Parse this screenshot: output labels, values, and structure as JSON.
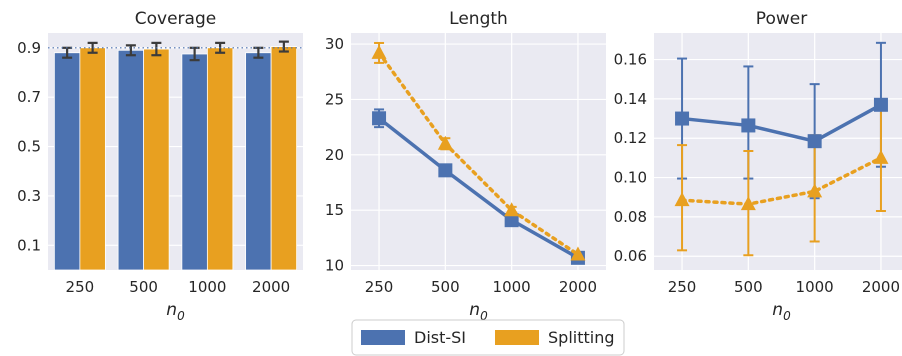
{
  "colors": {
    "dist_si": "#4c72b0",
    "splitting": "#e8a020",
    "panel_bg": "#eaeaf2",
    "grid": "#ffffff",
    "reference_line": "#4c72b0",
    "errorbar_bar_chart": "#3b3b3b"
  },
  "legend": {
    "items": [
      {
        "label": "Dist-SI",
        "color": "#4c72b0"
      },
      {
        "label": "Splitting",
        "color": "#e8a020"
      }
    ],
    "placement": "bottom-center"
  },
  "chart_data": [
    {
      "type": "bar",
      "title": "Coverage",
      "xlabel_main": "n",
      "xlabel_sub": "0",
      "ylabel": "",
      "categories": [
        "250",
        "500",
        "1000",
        "2000"
      ],
      "ylim": [
        0,
        0.96
      ],
      "yticks": [
        0.1,
        0.3,
        0.5,
        0.7,
        0.9
      ],
      "ytick_labels": [
        "0.1",
        "0.3",
        "0.5",
        "0.7",
        "0.9"
      ],
      "reference_line": 0.9,
      "grid": true,
      "series": [
        {
          "name": "Dist-SI",
          "values": [
            0.88,
            0.89,
            0.875,
            0.88
          ],
          "err": [
            0.02,
            0.02,
            0.025,
            0.02
          ]
        },
        {
          "name": "Splitting",
          "values": [
            0.9,
            0.895,
            0.9,
            0.905
          ],
          "err": [
            0.02,
            0.025,
            0.02,
            0.02
          ]
        }
      ]
    },
    {
      "type": "line",
      "title": "Length",
      "xlabel_main": "n",
      "xlabel_sub": "0",
      "ylabel": "",
      "categories": [
        "250",
        "500",
        "1000",
        "2000"
      ],
      "ylim": [
        9.6,
        31
      ],
      "yticks": [
        10,
        15,
        20,
        25,
        30
      ],
      "ytick_labels": [
        "10",
        "15",
        "20",
        "25",
        "30"
      ],
      "grid": true,
      "series": [
        {
          "name": "Dist-SI",
          "values": [
            23.3,
            18.6,
            14.1,
            10.7
          ],
          "err": [
            0.8,
            0.4,
            0.2,
            0.2
          ],
          "marker": "square",
          "linestyle": "solid"
        },
        {
          "name": "Splitting",
          "values": [
            29.2,
            21.0,
            15.0,
            11.0
          ],
          "err": [
            0.9,
            0.5,
            0.3,
            0.2
          ],
          "marker": "triangle",
          "linestyle": "dotted"
        }
      ]
    },
    {
      "type": "line",
      "title": "Power",
      "xlabel_main": "n",
      "xlabel_sub": "0",
      "ylabel": "",
      "categories": [
        "250",
        "500",
        "1000",
        "2000"
      ],
      "ylim": [
        0.053,
        0.1735
      ],
      "yticks": [
        0.06,
        0.08,
        0.1,
        0.12,
        0.14,
        0.16
      ],
      "ytick_labels": [
        "0.06",
        "0.08",
        "0.10",
        "0.12",
        "0.14",
        "0.16"
      ],
      "grid": true,
      "series": [
        {
          "name": "Dist-SI",
          "values": [
            0.13,
            0.1265,
            0.1185,
            0.137
          ],
          "lower": [
            0.0995,
            0.0995,
            0.0895,
            0.1055
          ],
          "upper": [
            0.1605,
            0.1565,
            0.1475,
            0.1685
          ],
          "marker": "square",
          "linestyle": "solid"
        },
        {
          "name": "Splitting",
          "values": [
            0.0885,
            0.0865,
            0.093,
            0.11
          ],
          "lower": [
            0.063,
            0.0605,
            0.0675,
            0.083
          ],
          "upper": [
            0.1165,
            0.1135,
            0.1215,
            0.1385
          ],
          "marker": "triangle",
          "linestyle": "dotted"
        }
      ]
    }
  ]
}
